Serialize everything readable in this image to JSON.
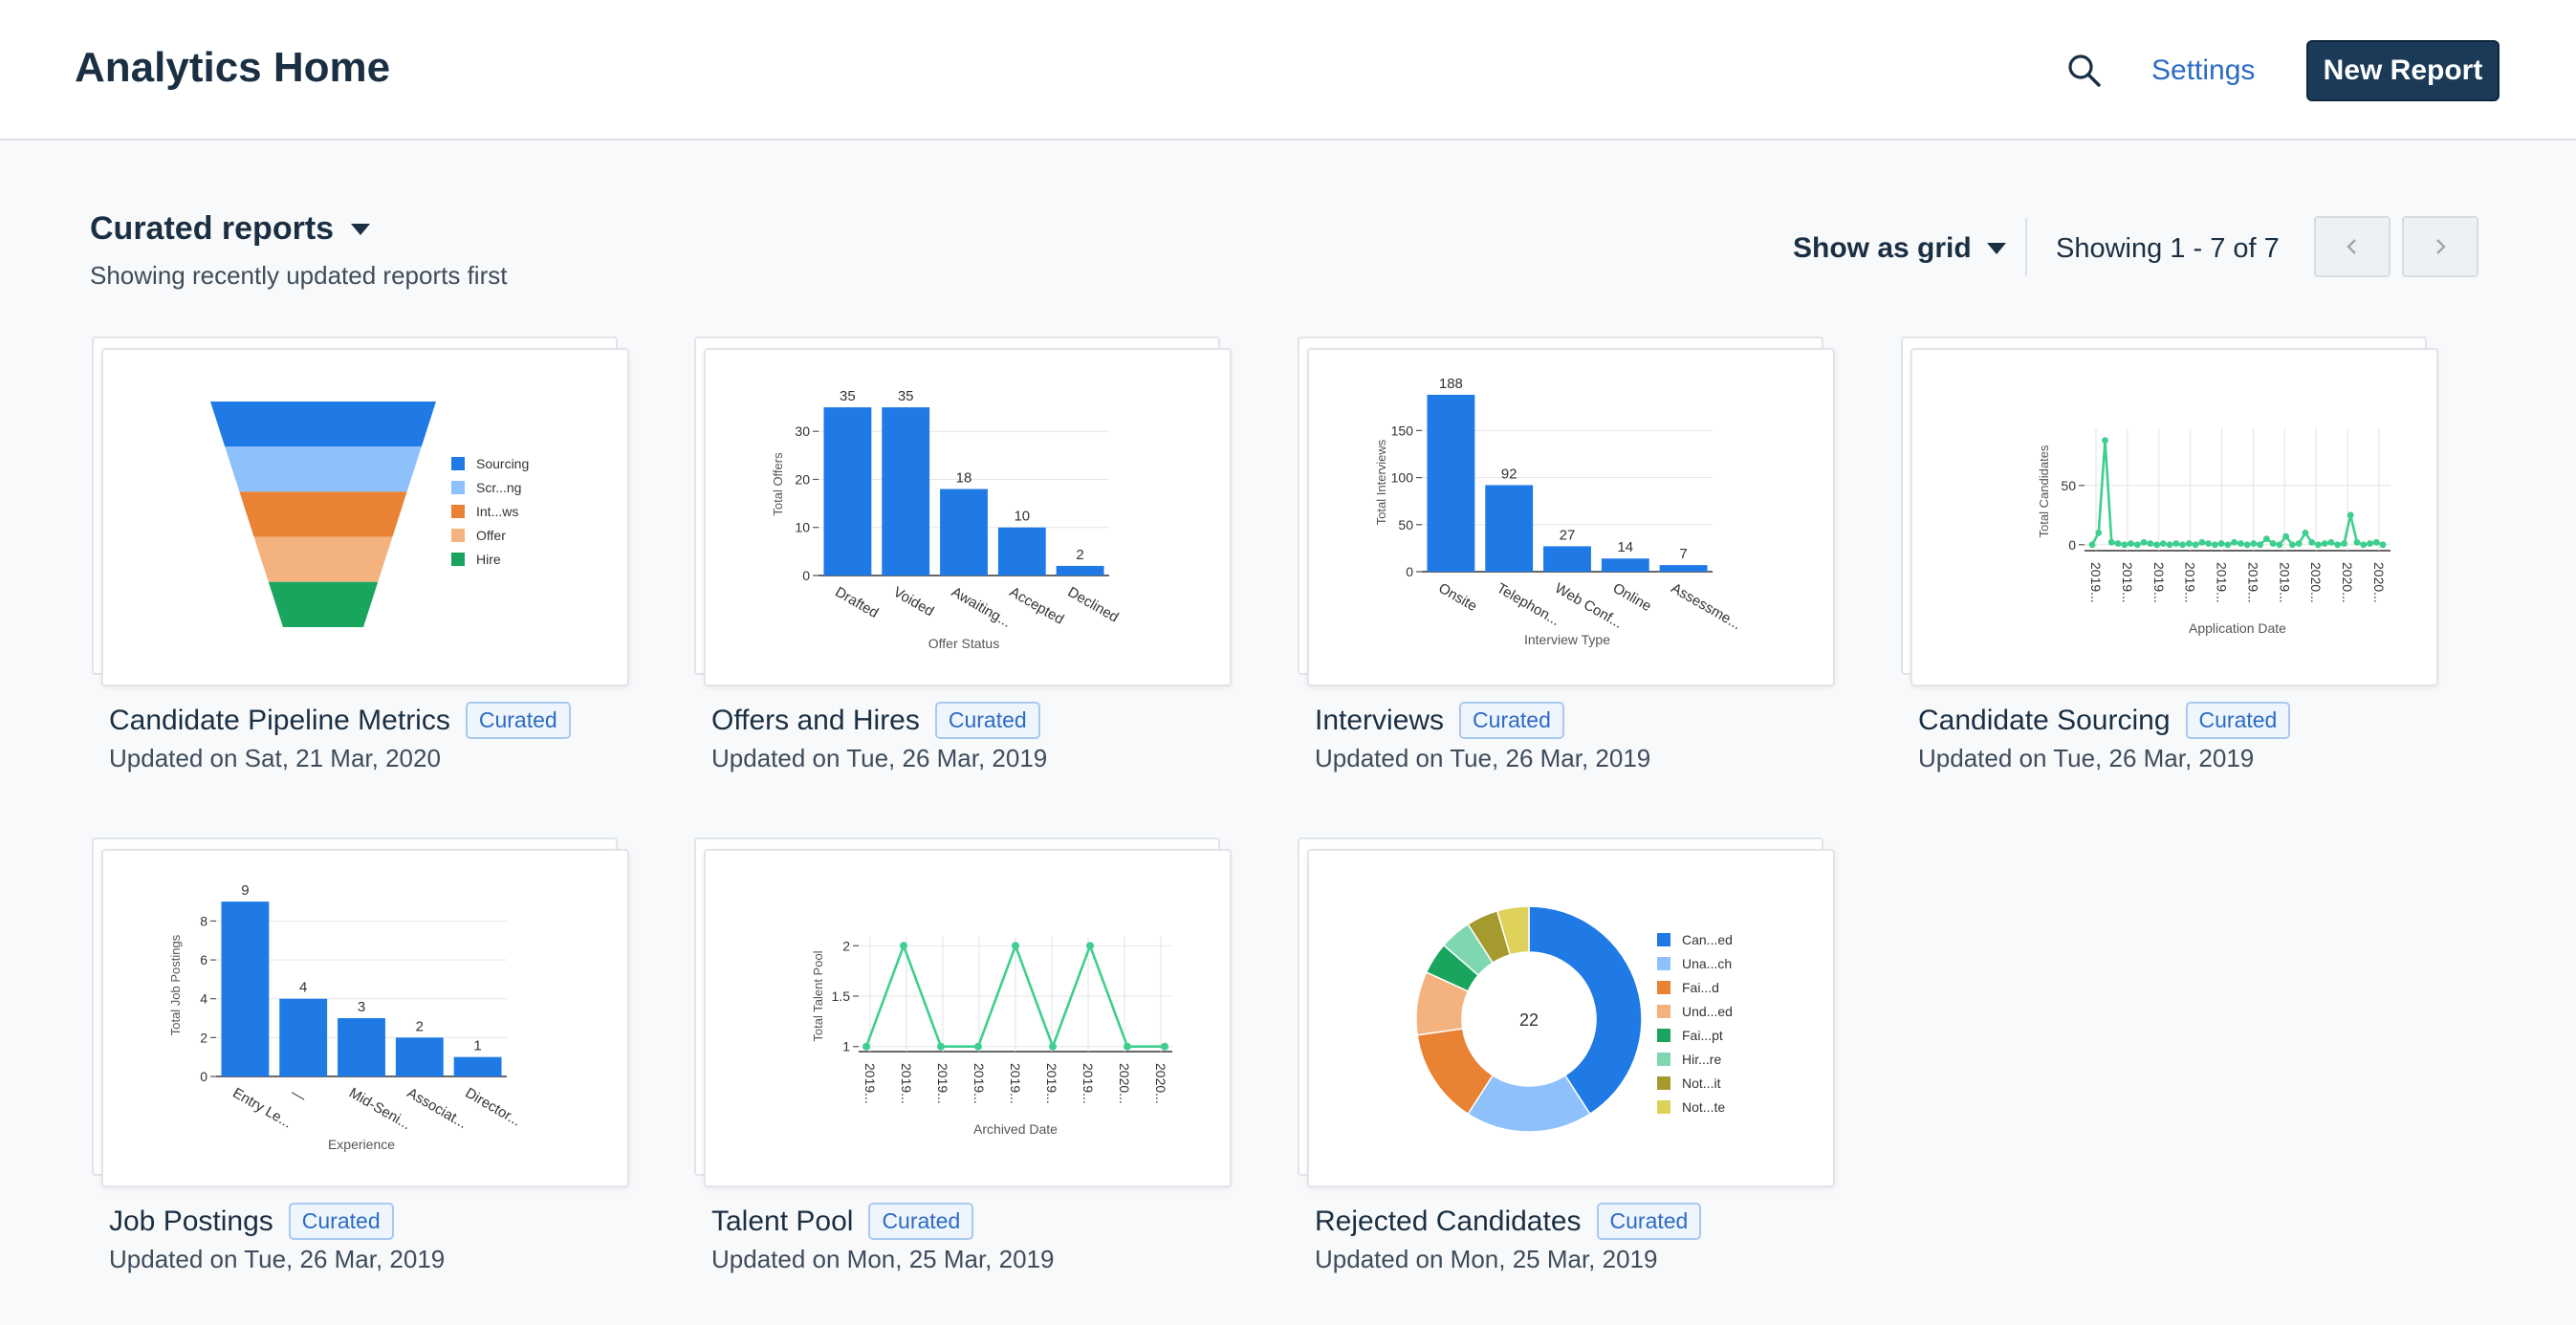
{
  "app": {
    "title": "Analytics Home",
    "settings_label": "Settings",
    "new_report_label": "New Report"
  },
  "reports_header": {
    "title": "Curated reports",
    "subtitle": "Showing recently updated reports first",
    "view_mode": "Show as grid",
    "showing": "Showing 1 - 7 of 7"
  },
  "colors": {
    "accent": "#2d6bc4",
    "bar_blue": "#1f7ae6",
    "line_green": "#3ecf8e",
    "primary_button": "#1b3a57"
  },
  "reports": [
    {
      "title": "Candidate Pipeline Metrics",
      "badge": "Curated",
      "updated": "Updated on Sat, 21 Mar, 2020",
      "chart_data": {
        "type": "funnel",
        "stages": [
          "Sourcing",
          "Scr...ng",
          "Int...ws",
          "Offer",
          "Hire"
        ],
        "colors": [
          "#1f7ae6",
          "#8ec1fb",
          "#e98232",
          "#f3b27e",
          "#1aa55e"
        ]
      }
    },
    {
      "title": "Offers and Hires",
      "badge": "Curated",
      "updated": "Updated on Tue, 26 Mar, 2019",
      "chart_data": {
        "type": "bar",
        "categories": [
          "Drafted",
          "Voided",
          "Awaiting...",
          "Accepted",
          "Declined"
        ],
        "values": [
          35,
          35,
          18,
          10,
          2
        ],
        "xlabel": "Offer Status",
        "ylabel": "Total Offers",
        "yticks": [
          0,
          10,
          20,
          30
        ],
        "ylim": [
          0,
          38
        ]
      }
    },
    {
      "title": "Interviews",
      "badge": "Curated",
      "updated": "Updated on Tue, 26 Mar, 2019",
      "chart_data": {
        "type": "bar",
        "categories": [
          "Onsite",
          "Telephon...",
          "Web Conf...",
          "Online",
          "Assessme..."
        ],
        "values": [
          188,
          92,
          27,
          14,
          7
        ],
        "xlabel": "Interview Type",
        "ylabel": "Total Interviews",
        "yticks": [
          0,
          50,
          100,
          150
        ],
        "ylim": [
          0,
          190
        ]
      }
    },
    {
      "title": "Candidate Sourcing",
      "badge": "Curated",
      "updated": "Updated on Tue, 26 Mar, 2019",
      "chart_data": {
        "type": "line",
        "xlabel": "Application Date",
        "ylabel": "Total Candidates",
        "xticklabels": [
          "2019...",
          "2019...",
          "2019...",
          "2019...",
          "2019...",
          "2019...",
          "2019...",
          "2020...",
          "2020...",
          "2020..."
        ],
        "yticks": [
          0,
          50
        ],
        "ylim": [
          -5,
          95
        ],
        "values": [
          0,
          10,
          88,
          2,
          1,
          0,
          1,
          0,
          2,
          1,
          0,
          1,
          0,
          1,
          0,
          1,
          0,
          2,
          1,
          0,
          1,
          0,
          2,
          1,
          0,
          1,
          0,
          5,
          1,
          0,
          7,
          0,
          1,
          10,
          2,
          0,
          1,
          2,
          0,
          1,
          25,
          2,
          0,
          1,
          2,
          0
        ]
      }
    },
    {
      "title": "Job Postings",
      "badge": "Curated",
      "updated": "Updated on Tue, 26 Mar, 2019",
      "chart_data": {
        "type": "bar",
        "categories": [
          "Entry Le...",
          "—",
          "Mid-Seni...",
          "Associat...",
          "Director..."
        ],
        "values": [
          9,
          4,
          3,
          2,
          1
        ],
        "xlabel": "Experience",
        "ylabel": "Total Job Postings",
        "yticks": [
          0,
          2,
          4,
          6,
          8
        ],
        "ylim": [
          0,
          9.4
        ]
      }
    },
    {
      "title": "Talent Pool",
      "badge": "Curated",
      "updated": "Updated on Mon, 25 Mar, 2019",
      "chart_data": {
        "type": "line",
        "xlabel": "Archived Date",
        "ylabel": "Total Talent Pool",
        "xticklabels": [
          "2019...",
          "2019...",
          "2019...",
          "2019...",
          "2019...",
          "2019...",
          "2019...",
          "2020...",
          "2020..."
        ],
        "values": [
          1,
          2,
          1,
          1,
          2,
          1,
          2,
          1,
          1
        ],
        "yticks": [
          1,
          1.5,
          2
        ],
        "yticklabels": [
          "1",
          "1.5",
          "2"
        ],
        "ylim": [
          0.95,
          2.05
        ]
      }
    },
    {
      "title": "Rejected Candidates",
      "badge": "Curated",
      "updated": "Updated on Mon, 25 Mar, 2019",
      "chart_data": {
        "type": "pie",
        "center_label": "22",
        "labels": [
          "Can...ed",
          "Una...ch",
          "Fai...d",
          "Und...ed",
          "Fai...pt",
          "Hir...re",
          "Not...it",
          "Not...te"
        ],
        "values": [
          9,
          4,
          3,
          2,
          1,
          1,
          1,
          1
        ],
        "colors": [
          "#1f7ae6",
          "#8ec1fb",
          "#e98232",
          "#f3b27e",
          "#1aa55e",
          "#7fd7b1",
          "#a59a2e",
          "#ded15a"
        ]
      }
    }
  ]
}
